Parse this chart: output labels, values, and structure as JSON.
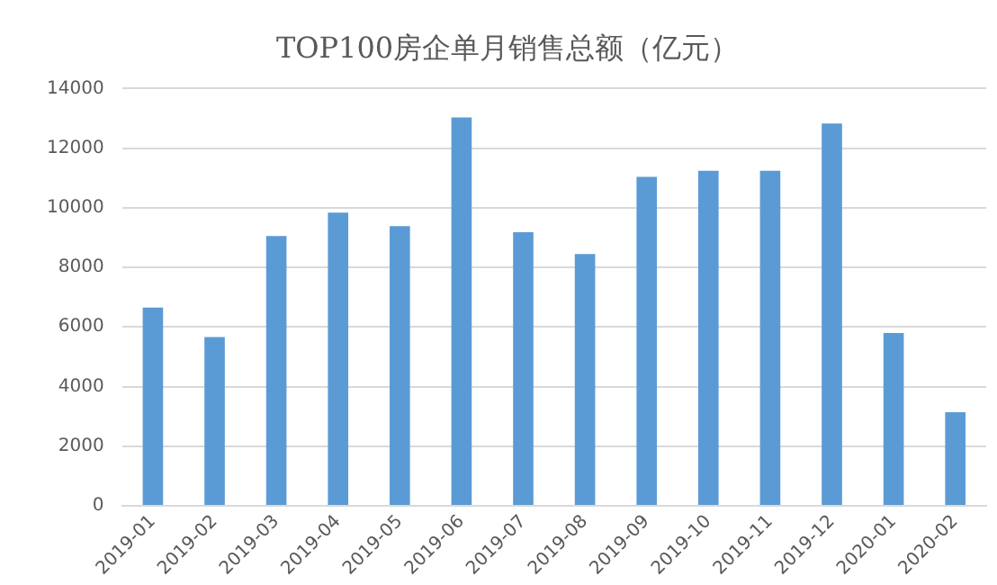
{
  "chart_data": {
    "type": "bar",
    "title": "TOP100房企单月销售总额（亿元）",
    "categories": [
      "2019-01",
      "2019-02",
      "2019-03",
      "2019-04",
      "2019-05",
      "2019-06",
      "2019-07",
      "2019-08",
      "2019-09",
      "2019-10",
      "2019-11",
      "2019-12",
      "2020-01",
      "2020-02"
    ],
    "values": [
      6650,
      5660,
      9050,
      9840,
      9380,
      13030,
      9180,
      8450,
      11040,
      11240,
      11240,
      12830,
      5800,
      3140
    ],
    "color": "#5b9bd5",
    "ylim": [
      0,
      14000
    ],
    "yticks": [
      0,
      2000,
      4000,
      6000,
      8000,
      10000,
      12000,
      14000
    ],
    "grid": "y"
  }
}
